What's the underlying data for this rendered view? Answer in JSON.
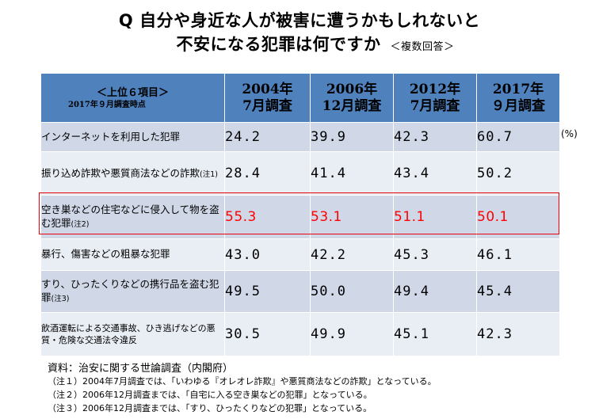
{
  "title": {
    "line1": "Q 自分や身近な人が被害に遭うかもしれないと",
    "line2": "不安になる犯罪は何ですか",
    "note": "＜複数回答＞"
  },
  "table": {
    "corner_line1": "＜上位６項目＞",
    "corner_line2": "2017年９月調査時点",
    "columns": [
      {
        "year": "2004年",
        "month": "7月調査"
      },
      {
        "year": "2006年",
        "month": "12月調査"
      },
      {
        "year": "2012年",
        "month": "7月調査"
      },
      {
        "year": "2017年",
        "month": "９月調査"
      }
    ],
    "rows": [
      {
        "label": "インターネットを利用した犯罪",
        "note": "",
        "values": [
          "24.2",
          "39.9",
          "42.3",
          "60.7"
        ]
      },
      {
        "label": "振り込め詐欺や悪質商法などの詐欺",
        "note": "(注1)",
        "values": [
          "28.4",
          "41.4",
          "43.4",
          "50.2"
        ]
      },
      {
        "label": "空き巣などの住宅などに侵入して物を盗む犯罪",
        "note": "(注2)",
        "values": [
          "55.3",
          "53.1",
          "51.1",
          "50.1"
        ]
      },
      {
        "label": "暴行、傷害などの粗暴な犯罪",
        "note": "",
        "values": [
          "43.0",
          "42.2",
          "45.3",
          "46.1"
        ]
      },
      {
        "label": "すり、ひったくりなどの携行品を盗む犯罪",
        "note": "(注3)",
        "values": [
          "49.5",
          "50.0",
          "49.4",
          "45.4"
        ]
      },
      {
        "label": "飲酒運転による交通事故、ひき逃げなどの悪質・危険な交通法令違反",
        "note": "",
        "values": [
          "30.5",
          "49.9",
          "45.1",
          "42.3"
        ]
      }
    ],
    "unit": "(%)"
  },
  "chart_data": {
    "type": "table",
    "title": "Q 自分や身近な人が被害に遭うかもしれないと不安になる犯罪は何ですか ＜複数回答＞",
    "categories": [
      "2004年7月調査",
      "2006年12月調査",
      "2012年7月調査",
      "2017年９月調査"
    ],
    "series": [
      {
        "name": "インターネットを利用した犯罪",
        "values": [
          24.2,
          39.9,
          42.3,
          60.7
        ]
      },
      {
        "name": "振り込め詐欺や悪質商法などの詐欺",
        "values": [
          28.4,
          41.4,
          43.4,
          50.2
        ]
      },
      {
        "name": "空き巣などの住宅などに侵入して物を盗む犯罪",
        "values": [
          55.3,
          53.1,
          51.1,
          50.1
        ]
      },
      {
        "name": "暴行、傷害などの粗暴な犯罪",
        "values": [
          43.0,
          42.2,
          45.3,
          46.1
        ]
      },
      {
        "name": "すり、ひったくりなどの携行品を盗む犯罪",
        "values": [
          49.5,
          50.0,
          49.4,
          45.4
        ]
      },
      {
        "name": "飲酒運転による交通事故、ひき逃げなどの悪質・危険な交通法令違反",
        "values": [
          30.5,
          49.9,
          45.1,
          42.3
        ]
      }
    ],
    "highlighted_row": "空き巣などの住宅などに侵入して物を盗む犯罪"
  },
  "colors": {
    "header": "#4f81bd",
    "row_odd": "#d0d8e8",
    "row_even": "#e9edf4",
    "highlight": "#ff0000"
  },
  "source": "資料：治安に関する世論調査（内閣府）",
  "notes": [
    "（注１）2004年7月調査では、「いわゆる『オレオレ詐欺』や悪質商法などの詐欺」となっている。",
    "（注２）2006年12月調査までは、「自宅に入る空き巣などの犯罪」となっている。",
    "（注３）2006年12月調査までは、「すり、ひったくりなどの犯罪」となっている。"
  ]
}
